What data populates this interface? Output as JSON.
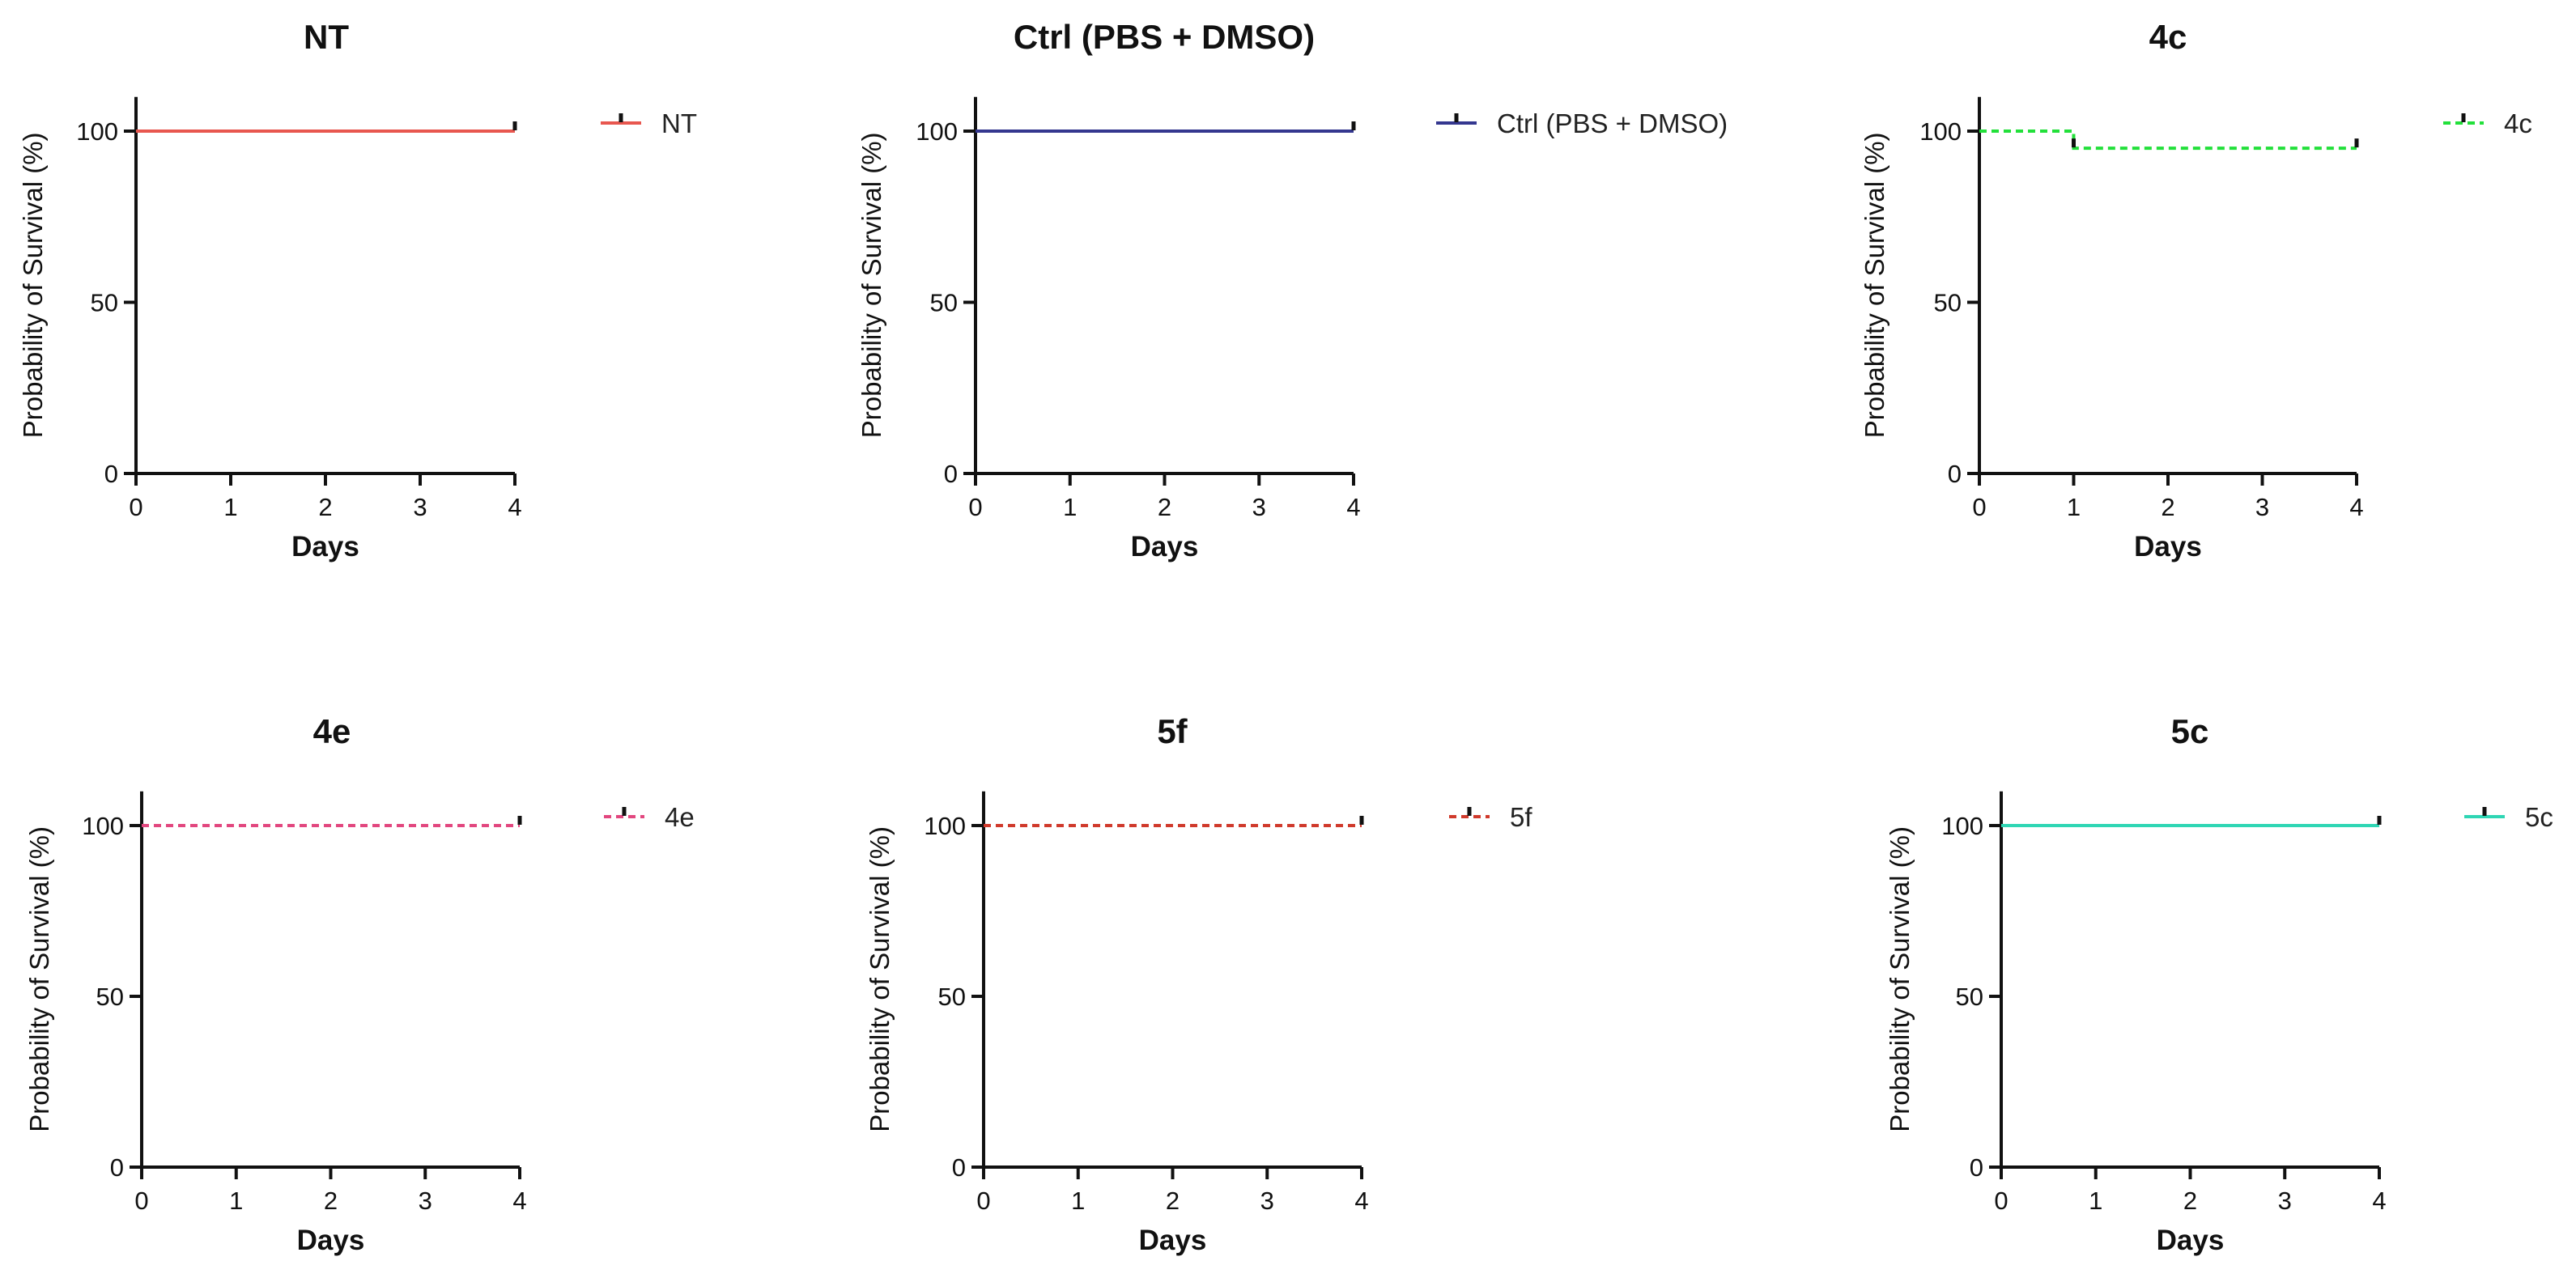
{
  "chart_data": [
    {
      "type": "line",
      "subtype": "kaplan-meier-survival",
      "title": "NT",
      "xlabel": "Days",
      "ylabel": "Probability of Survival (%)",
      "xlim": [
        0,
        4
      ],
      "ylim": [
        0,
        110
      ],
      "x_ticks": [
        "0",
        "1",
        "2",
        "3",
        "4"
      ],
      "y_ticks": [
        "0",
        "50",
        "100"
      ],
      "grid": false,
      "legend_position": "top-right",
      "series": [
        {
          "name": "NT",
          "color": "#e8574f",
          "line_style": "solid",
          "steps": [
            {
              "x": 0,
              "y": 100
            },
            {
              "x": 4,
              "y": 100
            }
          ],
          "censored": [
            {
              "x": 4,
              "y": 100
            }
          ]
        }
      ]
    },
    {
      "type": "line",
      "subtype": "kaplan-meier-survival",
      "title": "Ctrl (PBS + DMSO)",
      "xlabel": "Days",
      "ylabel": "Probability of Survival (%)",
      "xlim": [
        0,
        4
      ],
      "ylim": [
        0,
        110
      ],
      "x_ticks": [
        "0",
        "1",
        "2",
        "3",
        "4"
      ],
      "y_ticks": [
        "0",
        "50",
        "100"
      ],
      "grid": false,
      "legend_position": "top-right",
      "series": [
        {
          "name": "Ctrl (PBS + DMSO)",
          "color": "#34378f",
          "line_style": "solid",
          "steps": [
            {
              "x": 0,
              "y": 100
            },
            {
              "x": 4,
              "y": 100
            }
          ],
          "censored": [
            {
              "x": 4,
              "y": 100
            }
          ]
        }
      ]
    },
    {
      "type": "line",
      "subtype": "kaplan-meier-survival",
      "title": "4c",
      "xlabel": "Days",
      "ylabel": "Probability of Survival (%)",
      "xlim": [
        0,
        4
      ],
      "ylim": [
        0,
        110
      ],
      "x_ticks": [
        "0",
        "1",
        "2",
        "3",
        "4"
      ],
      "y_ticks": [
        "0",
        "50",
        "100"
      ],
      "grid": false,
      "legend_position": "top-right",
      "series": [
        {
          "name": "4c",
          "color": "#22e03a",
          "line_style": "dashed",
          "steps": [
            {
              "x": 0,
              "y": 100
            },
            {
              "x": 1,
              "y": 95
            },
            {
              "x": 4,
              "y": 95
            }
          ],
          "censored": [
            {
              "x": 1,
              "y": 95
            },
            {
              "x": 4,
              "y": 95
            }
          ]
        }
      ]
    },
    {
      "type": "line",
      "subtype": "kaplan-meier-survival",
      "title": "4e",
      "xlabel": "Days",
      "ylabel": "Probability of Survival (%)",
      "xlim": [
        0,
        4
      ],
      "ylim": [
        0,
        110
      ],
      "x_ticks": [
        "0",
        "1",
        "2",
        "3",
        "4"
      ],
      "y_ticks": [
        "0",
        "50",
        "100"
      ],
      "grid": false,
      "legend_position": "top-right",
      "series": [
        {
          "name": "4e",
          "color": "#e2477f",
          "line_style": "dashed",
          "steps": [
            {
              "x": 0,
              "y": 100
            },
            {
              "x": 4,
              "y": 100
            }
          ],
          "censored": [
            {
              "x": 4,
              "y": 100
            }
          ]
        }
      ]
    },
    {
      "type": "line",
      "subtype": "kaplan-meier-survival",
      "title": "5f",
      "xlabel": "Days",
      "ylabel": "Probability of Survival (%)",
      "xlim": [
        0,
        4
      ],
      "ylim": [
        0,
        110
      ],
      "x_ticks": [
        "0",
        "1",
        "2",
        "3",
        "4"
      ],
      "y_ticks": [
        "0",
        "50",
        "100"
      ],
      "grid": false,
      "legend_position": "top-right",
      "series": [
        {
          "name": "5f",
          "color": "#d03a2c",
          "line_style": "dashed",
          "steps": [
            {
              "x": 0,
              "y": 100
            },
            {
              "x": 4,
              "y": 100
            }
          ],
          "censored": [
            {
              "x": 4,
              "y": 100
            }
          ]
        }
      ]
    },
    {
      "type": "line",
      "subtype": "kaplan-meier-survival",
      "title": "5c",
      "xlabel": "Days",
      "ylabel": "Probability of Survival (%)",
      "xlim": [
        0,
        4
      ],
      "ylim": [
        0,
        110
      ],
      "x_ticks": [
        "0",
        "1",
        "2",
        "3",
        "4"
      ],
      "y_ticks": [
        "0",
        "50",
        "100"
      ],
      "grid": false,
      "legend_position": "top-right",
      "series": [
        {
          "name": "5c",
          "color": "#2fd6b4",
          "line_style": "solid",
          "steps": [
            {
              "x": 0,
              "y": 100
            },
            {
              "x": 4,
              "y": 100
            }
          ],
          "censored": [
            {
              "x": 4,
              "y": 100
            }
          ]
        }
      ]
    }
  ]
}
